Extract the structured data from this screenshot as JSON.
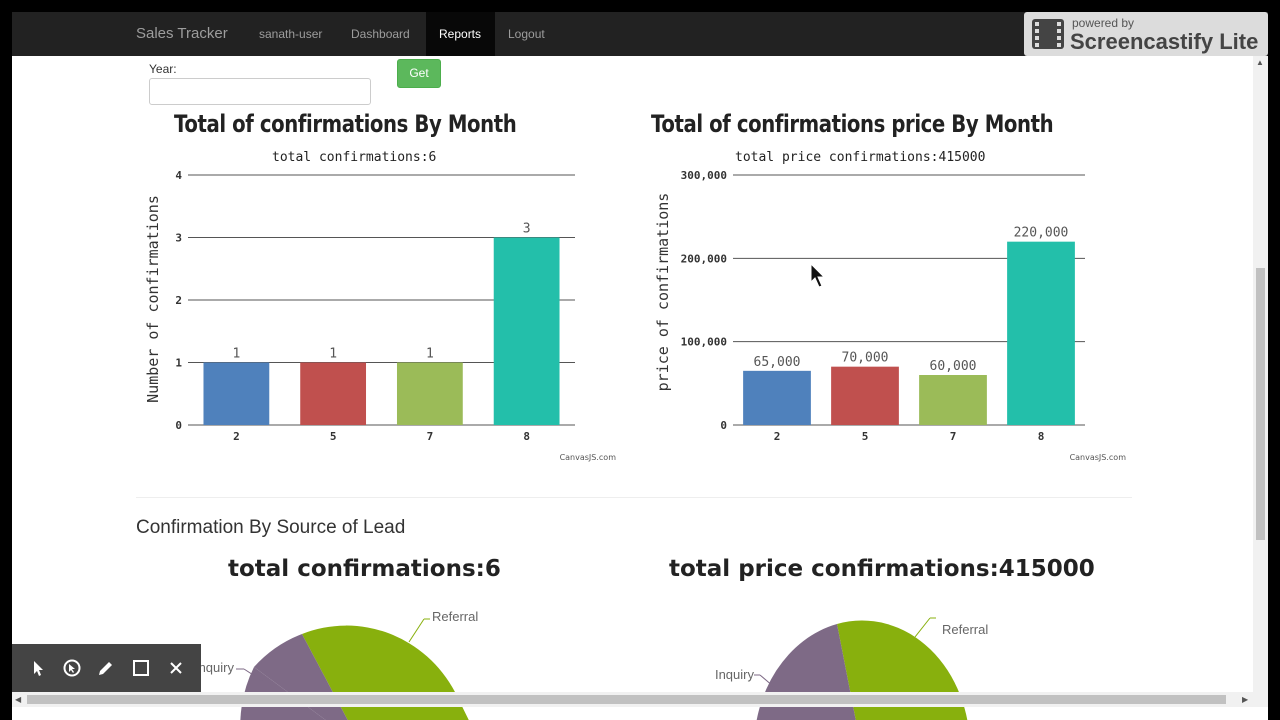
{
  "navbar": {
    "brand": "Sales Tracker",
    "items": [
      {
        "label": "sanath-user"
      },
      {
        "label": "Dashboard"
      },
      {
        "label": "Reports",
        "active": true
      },
      {
        "label": "Logout"
      }
    ]
  },
  "watermark": {
    "top": "powered by",
    "main": "Screencastify Lite"
  },
  "form": {
    "year_label": "Year:",
    "year_value": "",
    "get_label": "Get"
  },
  "charts": {
    "count": {
      "title": "Total of confirmations By Month",
      "subtitle": "total confirmations:6",
      "ylabel": "Number of confirmations",
      "credit": "CanvasJS.com"
    },
    "price": {
      "title": "Total of confirmations price By Month",
      "subtitle": "total price confirmations:415000",
      "ylabel": "price of confirmations",
      "credit": "CanvasJS.com"
    }
  },
  "section": {
    "title": "Confirmation By Source of Lead"
  },
  "pies": {
    "count": {
      "title": "total confirmations:6",
      "labels": [
        "Referral",
        "Inquiry"
      ]
    },
    "price": {
      "title": "total price confirmations:415000",
      "labels": [
        "Referral",
        "Inquiry"
      ]
    }
  },
  "colors": {
    "navbar": "#222222",
    "blue": "#4f81bc",
    "red": "#c0504e",
    "green": "#9bbb58",
    "teal": "#23bfaa",
    "pie_green": "#88b00d",
    "pie_purple": "#7e6a86",
    "button": "#5cb85c"
  },
  "chart_data": [
    {
      "type": "bar",
      "title": "Total of confirmations By Month",
      "subtitle": "total confirmations:6",
      "xlabel": "",
      "ylabel": "Number of confirmations",
      "categories": [
        "2",
        "5",
        "7",
        "8"
      ],
      "values": [
        1,
        1,
        1,
        3
      ],
      "data_labels": [
        "1",
        "1",
        "1",
        "3"
      ],
      "colors": [
        "#4f81bc",
        "#c0504e",
        "#9bbb58",
        "#23bfaa"
      ],
      "ylim": [
        0,
        4
      ],
      "yticks": [
        0,
        1,
        2,
        3,
        4
      ],
      "ytick_labels": [
        "0",
        "1",
        "2",
        "3",
        "4"
      ],
      "grid": true
    },
    {
      "type": "bar",
      "title": "Total of confirmations price By Month",
      "subtitle": "total price confirmations:415000",
      "xlabel": "",
      "ylabel": "price of confirmations",
      "categories": [
        "2",
        "5",
        "7",
        "8"
      ],
      "values": [
        65000,
        70000,
        60000,
        220000
      ],
      "data_labels": [
        "65,000",
        "70,000",
        "60,000",
        "220,000"
      ],
      "colors": [
        "#4f81bc",
        "#c0504e",
        "#9bbb58",
        "#23bfaa"
      ],
      "ylim": [
        0,
        300000
      ],
      "yticks": [
        0,
        100000,
        200000,
        300000
      ],
      "ytick_labels": [
        "0",
        "100,000",
        "200,000",
        "300,000"
      ],
      "grid": true
    },
    {
      "type": "pie",
      "title": "total confirmations:6",
      "labels": [
        "Referral",
        "Inquiry"
      ],
      "colors": [
        "#88b00d",
        "#7e6a86"
      ]
    },
    {
      "type": "pie",
      "title": "total price confirmations:415000",
      "labels": [
        "Referral",
        "Inquiry"
      ],
      "colors": [
        "#88b00d",
        "#7e6a86"
      ]
    }
  ]
}
